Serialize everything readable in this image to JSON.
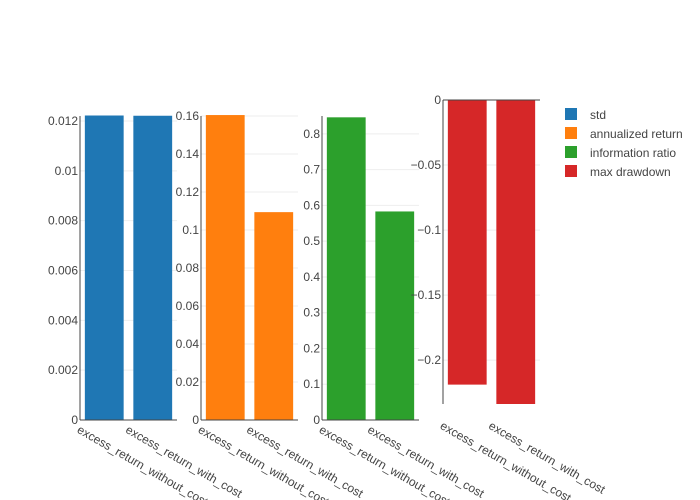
{
  "chart_data": {
    "type": "bar",
    "subplots": [
      {
        "name": "std",
        "color": "#1f77b4",
        "categories": [
          "excess_return_without_cost",
          "excess_return_with_cost"
        ],
        "values": [
          0.01222,
          0.01221
        ],
        "ylim": [
          0,
          0.0122
        ],
        "yticks": [
          0,
          0.002,
          0.004,
          0.006,
          0.008,
          0.01,
          0.012
        ],
        "ytick_labels": [
          "0",
          "0.002",
          "0.004",
          "0.006",
          "0.008",
          "0.01",
          "0.012"
        ]
      },
      {
        "name": "annualized return",
        "color": "#ff7f0e",
        "categories": [
          "excess_return_without_cost",
          "excess_return_with_cost"
        ],
        "values": [
          0.1605,
          0.1094
        ],
        "ylim": [
          0,
          0.16
        ],
        "yticks": [
          0,
          0.02,
          0.04,
          0.06,
          0.08,
          0.1,
          0.12,
          0.14,
          0.16
        ],
        "ytick_labels": [
          "0",
          "0.02",
          "0.04",
          "0.06",
          "0.08",
          "0.1",
          "0.12",
          "0.14",
          "0.16"
        ]
      },
      {
        "name": "information ratio",
        "color": "#2ca02c",
        "categories": [
          "excess_return_without_cost",
          "excess_return_with_cost"
        ],
        "values": [
          0.8463,
          0.5831
        ],
        "ylim": [
          0,
          0.85
        ],
        "yticks": [
          0,
          0.1,
          0.2,
          0.3,
          0.4,
          0.5,
          0.6,
          0.7,
          0.8
        ],
        "ytick_labels": [
          "0",
          "0.1",
          "0.2",
          "0.3",
          "0.4",
          "0.5",
          "0.6",
          "0.7",
          "0.8"
        ]
      },
      {
        "name": "max drawdown",
        "color": "#d62728",
        "categories": [
          "excess_return_without_cost",
          "excess_return_with_cost"
        ],
        "values": [
          -0.2188,
          -0.2337
        ],
        "ylim": [
          -0.2337,
          0
        ],
        "yticks": [
          0,
          -0.05,
          -0.1,
          -0.15,
          -0.2
        ],
        "ytick_labels": [
          "0",
          "−0.05",
          "−0.1",
          "−0.15",
          "−0.2"
        ]
      }
    ],
    "legend": {
      "position": "top-right",
      "entries": [
        {
          "label": "std",
          "color": "#1f77b4"
        },
        {
          "label": "annualized return",
          "color": "#ff7f0e"
        },
        {
          "label": "information ratio",
          "color": "#2ca02c"
        },
        {
          "label": "max drawdown",
          "color": "#d62728"
        }
      ]
    },
    "grid": true
  }
}
